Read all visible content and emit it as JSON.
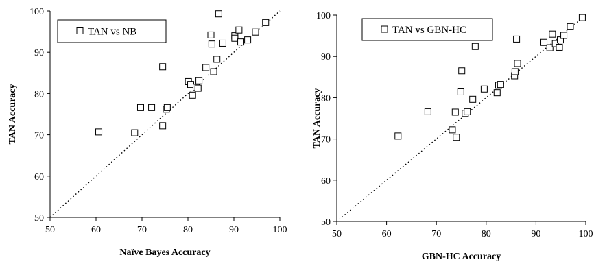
{
  "chart_data": [
    {
      "type": "scatter",
      "title": "",
      "xlabel": "Naïve Bayes Accuracy",
      "ylabel": "TAN Accuracy",
      "xlim": [
        50,
        100
      ],
      "ylim": [
        50,
        100
      ],
      "x_ticks": [
        "50",
        "60",
        "70",
        "80",
        "90",
        "100"
      ],
      "y_ticks": [
        "50",
        "60",
        "70",
        "80",
        "90",
        "100"
      ],
      "grid": false,
      "legend_position": "top-left",
      "reference_line": "dotted y = x",
      "series": [
        {
          "name": "TAN vs NB",
          "marker": "open-square",
          "points": [
            [
              60.6,
              70.7
            ],
            [
              68.4,
              70.5
            ],
            [
              69.7,
              76.6
            ],
            [
              72.1,
              76.6
            ],
            [
              74.5,
              72.2
            ],
            [
              74.5,
              86.5
            ],
            [
              75.3,
              76.2
            ],
            [
              75.5,
              76.6
            ],
            [
              80.1,
              82.9
            ],
            [
              80.6,
              82.2
            ],
            [
              81.0,
              79.6
            ],
            [
              81.8,
              81.5
            ],
            [
              82.2,
              81.3
            ],
            [
              82.4,
              83.1
            ],
            [
              83.9,
              86.3
            ],
            [
              85.0,
              94.2
            ],
            [
              85.2,
              92.0
            ],
            [
              85.6,
              85.3
            ],
            [
              86.3,
              88.3
            ],
            [
              86.7,
              99.3
            ],
            [
              87.6,
              92.2
            ],
            [
              90.2,
              94.0
            ],
            [
              90.2,
              93.4
            ],
            [
              91.1,
              95.4
            ],
            [
              91.5,
              92.5
            ],
            [
              93.0,
              93.0
            ],
            [
              94.7,
              94.9
            ],
            [
              96.9,
              97.2
            ]
          ]
        }
      ]
    },
    {
      "type": "scatter",
      "title": "",
      "xlabel": "GBN-HC Accuracy",
      "ylabel": "TAN Accuracy",
      "xlim": [
        50,
        100
      ],
      "ylim": [
        50,
        100
      ],
      "x_ticks": [
        "50",
        "60",
        "70",
        "80",
        "90",
        "100"
      ],
      "y_ticks": [
        "50",
        "60",
        "70",
        "80",
        "90",
        "100"
      ],
      "grid": false,
      "legend_position": "top-left",
      "reference_line": "dotted y = x",
      "series": [
        {
          "name": "TAN vs GBN-HC",
          "marker": "open-square",
          "points": [
            [
              62.3,
              70.7
            ],
            [
              68.3,
              76.6
            ],
            [
              73.2,
              72.2
            ],
            [
              73.8,
              76.5
            ],
            [
              74.0,
              70.4
            ],
            [
              74.9,
              81.4
            ],
            [
              75.1,
              86.5
            ],
            [
              75.8,
              76.2
            ],
            [
              76.2,
              76.6
            ],
            [
              77.3,
              79.6
            ],
            [
              77.8,
              92.4
            ],
            [
              79.6,
              82.1
            ],
            [
              82.2,
              81.2
            ],
            [
              82.5,
              83.0
            ],
            [
              82.9,
              83.2
            ],
            [
              85.7,
              85.3
            ],
            [
              85.8,
              86.3
            ],
            [
              86.1,
              94.2
            ],
            [
              86.3,
              88.3
            ],
            [
              91.6,
              93.4
            ],
            [
              92.8,
              92.1
            ],
            [
              93.3,
              95.4
            ],
            [
              93.9,
              93.1
            ],
            [
              94.7,
              92.2
            ],
            [
              94.9,
              94.0
            ],
            [
              95.6,
              95.1
            ],
            [
              96.9,
              97.2
            ],
            [
              99.3,
              99.4
            ]
          ]
        }
      ]
    }
  ]
}
